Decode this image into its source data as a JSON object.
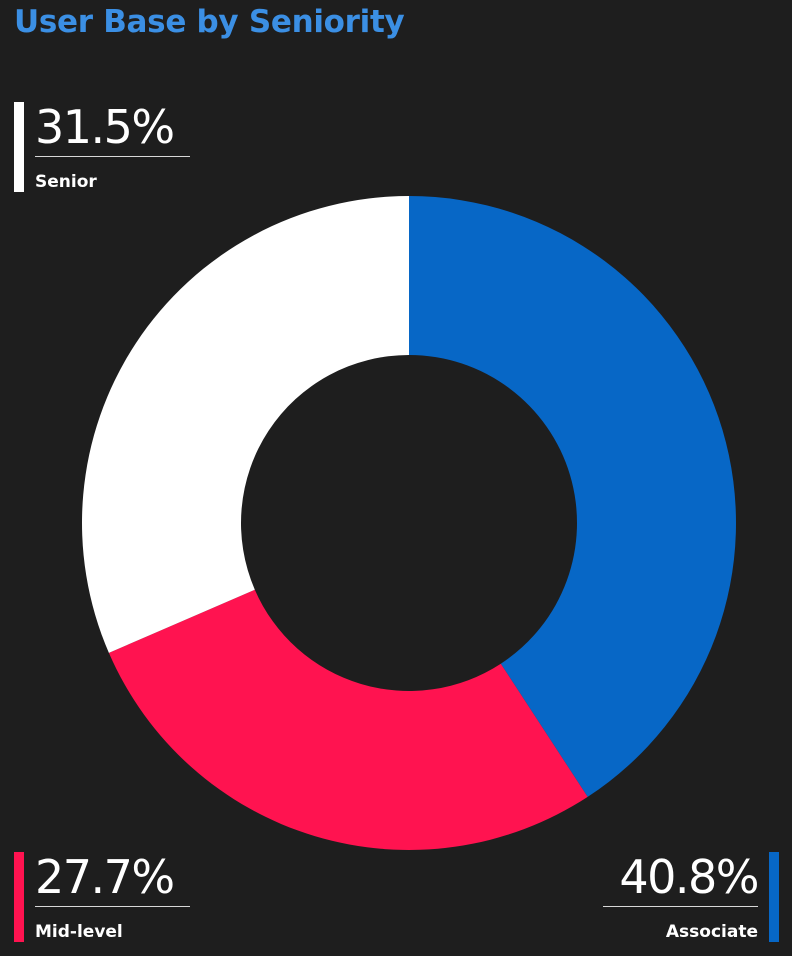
{
  "chart_data": {
    "type": "pie",
    "variant": "donut",
    "title": "User Base by Seniority",
    "series": [
      {
        "name": "Associate",
        "label": "Associate",
        "value": 40.8,
        "display": "40.8%",
        "color": "#0767c6"
      },
      {
        "name": "Mid-level",
        "label": "Mid-level",
        "value": 27.7,
        "display": "27.7%",
        "color": "#ff1350"
      },
      {
        "name": "Senior",
        "label": "Senior",
        "value": 31.5,
        "display": "31.5%",
        "color": "#ffffff"
      }
    ],
    "start_angle": "12 o'clock",
    "direction": "clockwise",
    "legend": "callouts"
  },
  "colors": {
    "background": "#1e1e1e",
    "title": "#3b8fe4",
    "rule": "#d8d8d8"
  }
}
